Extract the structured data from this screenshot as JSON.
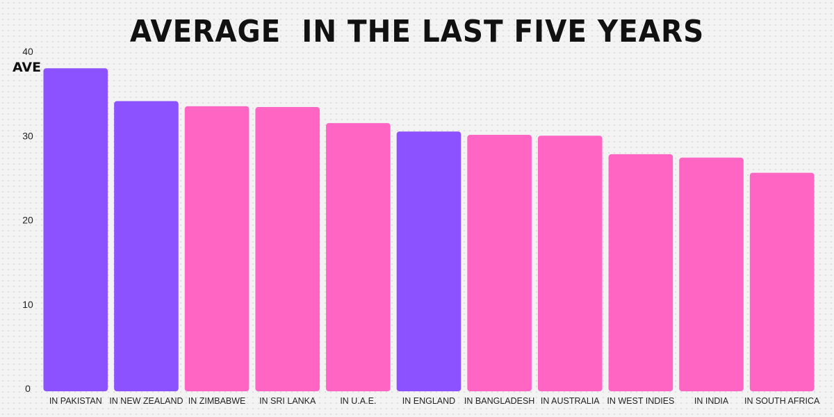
{
  "chart_data": {
    "type": "bar",
    "title": "AVERAGE  IN THE LAST FIVE YEARS",
    "ylabel": "AVE",
    "xlabel": "",
    "ylim": [
      0,
      40
    ],
    "yticks": [
      0,
      10,
      20,
      30,
      40
    ],
    "grid": false,
    "categories": [
      "IN PAKISTAN",
      "IN NEW ZEALAND",
      "IN ZIMBABWE",
      "IN SRI LANKA",
      "IN U.A.E.",
      "IN ENGLAND",
      "IN BANGLADESH",
      "IN AUSTRALIA",
      "IN WEST INDIES",
      "IN INDIA",
      "IN SOUTH AFRICA"
    ],
    "values": [
      38.0,
      34.1,
      33.5,
      33.4,
      31.5,
      30.5,
      30.1,
      30.0,
      27.8,
      27.4,
      25.6
    ],
    "colors": [
      "#8c52ff",
      "#8c52ff",
      "#ff66c4",
      "#ff66c4",
      "#ff66c4",
      "#8c52ff",
      "#ff66c4",
      "#ff66c4",
      "#ff66c4",
      "#ff66c4",
      "#ff66c4"
    ]
  }
}
